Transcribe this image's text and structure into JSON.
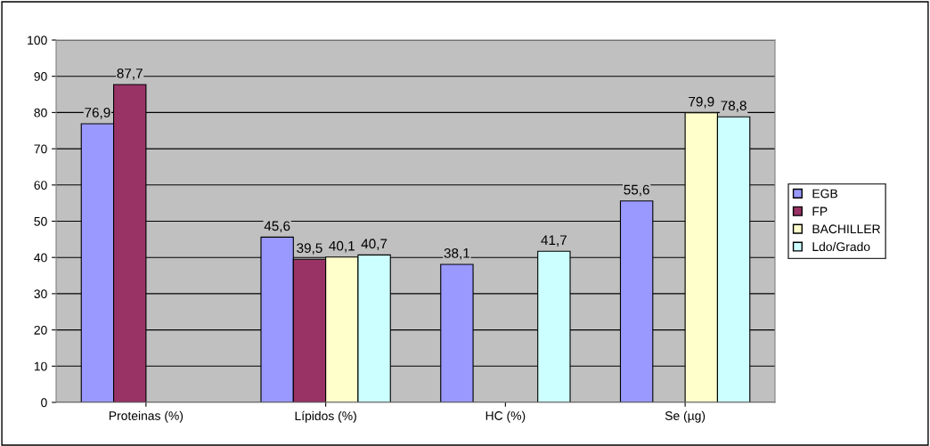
{
  "chart_data": {
    "type": "bar",
    "categories": [
      "Proteinas (%)",
      "Lípidos (%)",
      "HC (%)",
      "Se (µg)"
    ],
    "series": [
      {
        "name": "EGB",
        "color": "#9999ff",
        "values": [
          76.9,
          45.6,
          38.1,
          55.6
        ],
        "value_labels": [
          "76,9",
          "45,6",
          "38,1",
          "55,6"
        ]
      },
      {
        "name": "FP",
        "color": "#993366",
        "values": [
          87.7,
          39.5,
          null,
          null
        ],
        "value_labels": [
          "87,7",
          "39,5",
          null,
          null
        ]
      },
      {
        "name": "BACHILLER",
        "color": "#ffffcc",
        "values": [
          null,
          40.1,
          null,
          79.9
        ],
        "value_labels": [
          null,
          "40,1",
          null,
          "79,9"
        ]
      },
      {
        "name": "Ldo/Grado",
        "color": "#ccffff",
        "values": [
          null,
          40.7,
          41.7,
          78.8
        ],
        "value_labels": [
          null,
          "40,7",
          "41,7",
          "78,8"
        ]
      }
    ],
    "ylim": [
      0,
      100
    ],
    "yticks": [
      0,
      10,
      20,
      30,
      40,
      50,
      60,
      70,
      80,
      90,
      100
    ],
    "grid": "y",
    "legend": "right"
  }
}
